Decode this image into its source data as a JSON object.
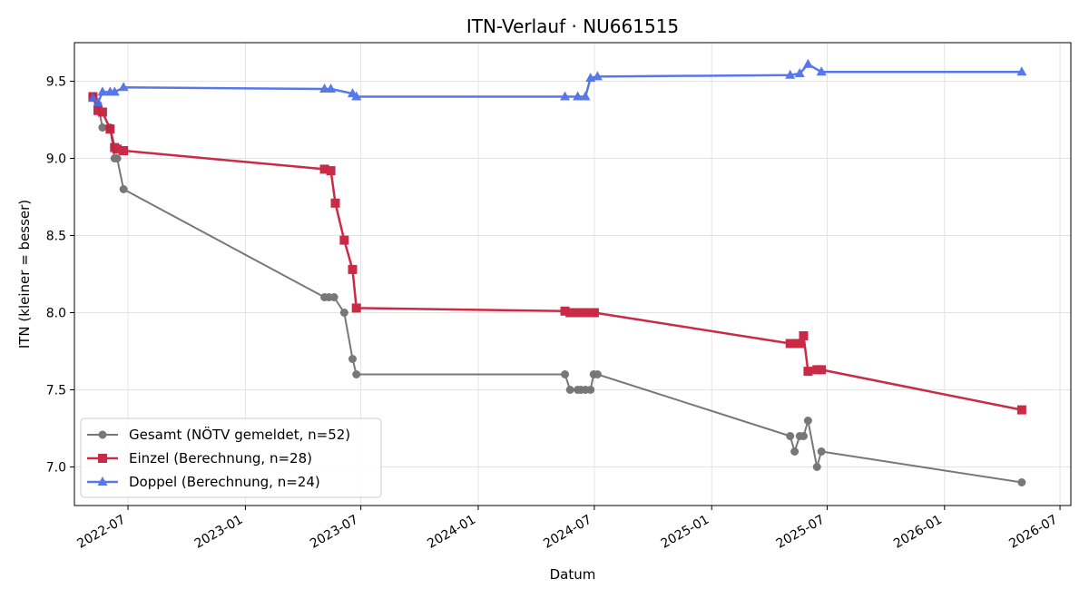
{
  "chart_data": {
    "type": "line",
    "title": "ITN-Verlauf · NU661515",
    "xlabel": "Datum",
    "ylabel": "ITN  (kleiner = besser)",
    "x_range": [
      "2022-04-08",
      "2026-07-18"
    ],
    "ylim": [
      6.75,
      9.75
    ],
    "x_ticks": [
      "2022-07",
      "2023-01",
      "2023-07",
      "2024-01",
      "2024-07",
      "2025-01",
      "2025-07",
      "2026-01",
      "2026-07"
    ],
    "y_ticks": [
      "7.0",
      "7.5",
      "8.0",
      "8.5",
      "9.0",
      "9.5"
    ],
    "grid": true,
    "legend_position": "lower-left",
    "series": [
      {
        "name": "Gesamt (NÖTV gemeldet, n=52)",
        "color": "#404040",
        "marker": "circle",
        "points": [
          [
            "2022-05-07",
            9.4
          ],
          [
            "2022-05-15",
            9.35
          ],
          [
            "2022-05-22",
            9.2
          ],
          [
            "2022-06-03",
            9.2
          ],
          [
            "2022-06-10",
            9.0
          ],
          [
            "2022-06-14",
            9.0
          ],
          [
            "2022-06-24",
            8.8
          ],
          [
            "2023-05-05",
            8.1
          ],
          [
            "2023-05-12",
            8.1
          ],
          [
            "2023-05-20",
            8.1
          ],
          [
            "2023-06-05",
            8.0
          ],
          [
            "2023-06-18",
            7.7
          ],
          [
            "2023-06-24",
            7.6
          ],
          [
            "2024-05-16",
            7.6
          ],
          [
            "2024-05-24",
            7.5
          ],
          [
            "2024-06-05",
            7.5
          ],
          [
            "2024-06-10",
            7.5
          ],
          [
            "2024-06-17",
            7.5
          ],
          [
            "2024-06-25",
            7.5
          ],
          [
            "2024-06-30",
            7.6
          ],
          [
            "2024-07-06",
            7.6
          ],
          [
            "2025-05-04",
            7.2
          ],
          [
            "2025-05-11",
            7.1
          ],
          [
            "2025-05-19",
            7.2
          ],
          [
            "2025-05-25",
            7.2
          ],
          [
            "2025-06-01",
            7.3
          ],
          [
            "2025-06-15",
            7.0
          ],
          [
            "2025-06-22",
            7.1
          ],
          [
            "2026-05-02",
            6.9
          ]
        ]
      },
      {
        "name": "Einzel (Berechnung, n=28)",
        "color": "#c7203e",
        "marker": "square",
        "points": [
          [
            "2022-05-07",
            9.4
          ],
          [
            "2022-05-15",
            9.31
          ],
          [
            "2022-05-22",
            9.3
          ],
          [
            "2022-06-03",
            9.19
          ],
          [
            "2022-06-10",
            9.07
          ],
          [
            "2022-06-14",
            9.06
          ],
          [
            "2022-06-24",
            9.05
          ],
          [
            "2023-05-05",
            8.93
          ],
          [
            "2023-05-15",
            8.92
          ],
          [
            "2023-05-22",
            8.71
          ],
          [
            "2023-06-05",
            8.47
          ],
          [
            "2023-06-18",
            8.28
          ],
          [
            "2023-06-24",
            8.03
          ],
          [
            "2024-05-16",
            8.01
          ],
          [
            "2024-05-24",
            8.0
          ],
          [
            "2024-06-05",
            8.0
          ],
          [
            "2024-06-10",
            8.0
          ],
          [
            "2024-06-17",
            8.0
          ],
          [
            "2024-06-25",
            8.0
          ],
          [
            "2024-07-01",
            8.0
          ],
          [
            "2025-05-04",
            7.8
          ],
          [
            "2025-05-11",
            7.8
          ],
          [
            "2025-05-19",
            7.8
          ],
          [
            "2025-05-25",
            7.85
          ],
          [
            "2025-06-01",
            7.62
          ],
          [
            "2025-06-15",
            7.63
          ],
          [
            "2025-06-22",
            7.63
          ],
          [
            "2026-05-02",
            7.37
          ]
        ]
      },
      {
        "name": "Doppel (Berechnung, n=24)",
        "color": "#4a6de8",
        "marker": "triangle",
        "points": [
          [
            "2022-05-07",
            9.39
          ],
          [
            "2022-05-15",
            9.36
          ],
          [
            "2022-05-22",
            9.43
          ],
          [
            "2022-06-03",
            9.43
          ],
          [
            "2022-06-10",
            9.43
          ],
          [
            "2022-06-24",
            9.46
          ],
          [
            "2023-05-05",
            9.45
          ],
          [
            "2023-05-15",
            9.45
          ],
          [
            "2023-06-18",
            9.42
          ],
          [
            "2023-06-24",
            9.4
          ],
          [
            "2024-05-16",
            9.4
          ],
          [
            "2024-06-05",
            9.4
          ],
          [
            "2024-06-17",
            9.4
          ],
          [
            "2024-06-25",
            9.52
          ],
          [
            "2024-07-06",
            9.53
          ],
          [
            "2025-05-04",
            9.54
          ],
          [
            "2025-05-19",
            9.55
          ],
          [
            "2025-06-01",
            9.61
          ],
          [
            "2025-06-22",
            9.56
          ],
          [
            "2026-05-02",
            9.56
          ]
        ]
      }
    ]
  }
}
